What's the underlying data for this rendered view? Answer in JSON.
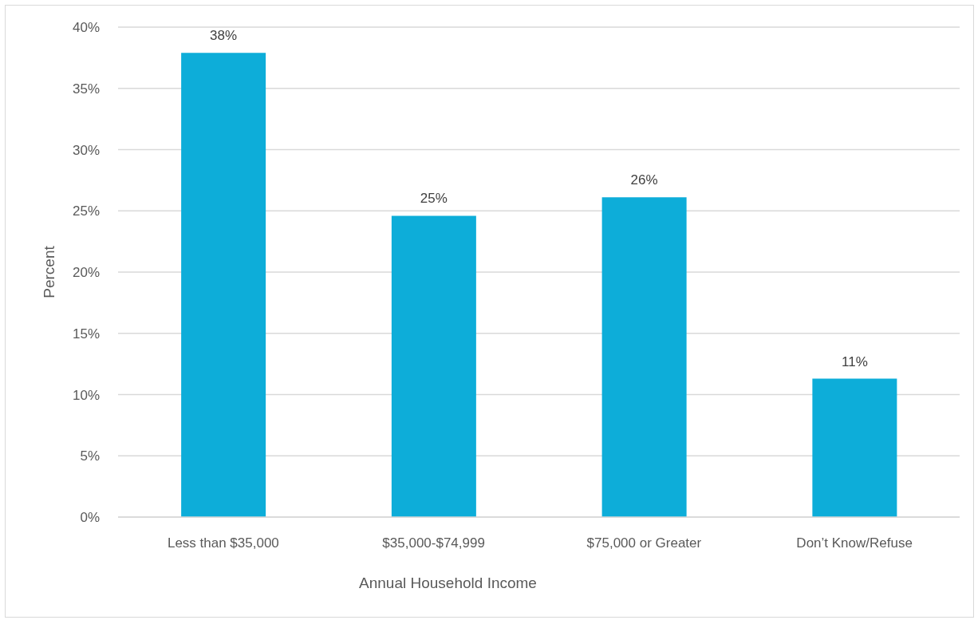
{
  "chart_data": {
    "type": "bar",
    "categories": [
      "Less than $35,000",
      "$35,000-$74,999",
      "$75,000 or Greater",
      "Don’t Know/Refuse"
    ],
    "values": [
      37.9,
      24.6,
      26.1,
      11.3
    ],
    "value_labels": [
      "38%",
      "25%",
      "26%",
      "11%"
    ],
    "color": "#0dadd9",
    "xlabel": "Annual Household Income",
    "ylabel": "Percent",
    "ylim": [
      0,
      40
    ],
    "yticks": [
      {
        "value": 0,
        "label": "0%"
      },
      {
        "value": 5,
        "label": "5%"
      },
      {
        "value": 10,
        "label": "10%"
      },
      {
        "value": 15,
        "label": "15%"
      },
      {
        "value": 20,
        "label": "20%"
      },
      {
        "value": 25,
        "label": "25%"
      },
      {
        "value": 30,
        "label": "30%"
      },
      {
        "value": 35,
        "label": "35%"
      },
      {
        "value": 40,
        "label": "40%"
      }
    ],
    "grid": "y"
  }
}
